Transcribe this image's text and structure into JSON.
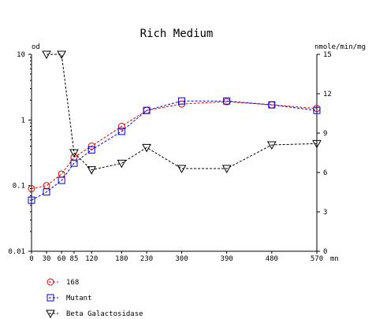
{
  "chart_data": {
    "type": "line",
    "title": "Rich Medium",
    "y_left_label": "od",
    "y_right_label": "nmole/min/mg",
    "x_unit_label": "mn",
    "x_ticks": [
      0,
      30,
      60,
      85,
      120,
      180,
      230,
      300,
      390,
      480,
      570
    ],
    "x_range": [
      0,
      570
    ],
    "y_left_scale": "log",
    "y_left_range": [
      0.01,
      10
    ],
    "y_left_ticks": [
      "10",
      "1",
      "0.1",
      "0.01"
    ],
    "y_right_range": [
      0,
      15
    ],
    "y_right_ticks": [
      "15",
      "12",
      "9",
      "6",
      "3",
      "0"
    ],
    "grid": false,
    "legend_position": "bottom-left",
    "series": [
      {
        "name": "168",
        "axis": "left",
        "marker": "circle",
        "color": "#dd0000",
        "x": [
          0,
          30,
          60,
          85,
          120,
          180,
          230,
          300,
          390,
          480,
          570
        ],
        "y": [
          0.09,
          0.1,
          0.15,
          0.27,
          0.4,
          0.8,
          1.4,
          1.75,
          1.9,
          1.7,
          1.5
        ]
      },
      {
        "name": "Mutant",
        "axis": "left",
        "marker": "square",
        "color": "#0000cc",
        "x": [
          0,
          30,
          60,
          85,
          120,
          180,
          230,
          300,
          390,
          480,
          570
        ],
        "y": [
          0.06,
          0.08,
          0.12,
          0.22,
          0.35,
          0.67,
          1.4,
          1.95,
          1.95,
          1.7,
          1.4
        ]
      },
      {
        "name": "Beta Galactosidase",
        "axis": "right",
        "marker": "triangle-down",
        "color": "#000000",
        "x": [
          30,
          60,
          85,
          120,
          180,
          230,
          300,
          390,
          480,
          570
        ],
        "y": [
          15.0,
          15.0,
          7.5,
          6.2,
          6.7,
          7.9,
          6.3,
          6.3,
          8.1,
          8.2
        ]
      }
    ]
  }
}
